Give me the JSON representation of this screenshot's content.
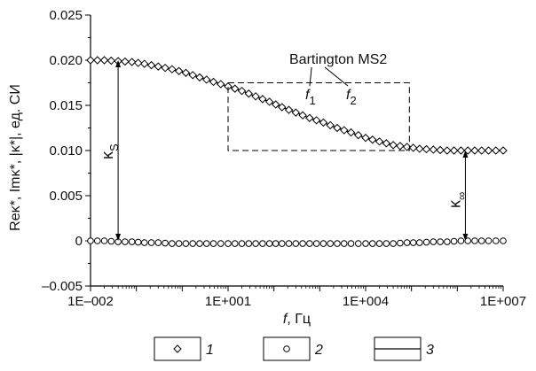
{
  "chart_data": {
    "type": "line",
    "title": "",
    "xlabel": "f, Гц",
    "ylabel": "Reκ*, Imκ*, |κ*|, ед. СИ",
    "x_scale": "log",
    "xlim": [
      0.01,
      10000000
    ],
    "ylim": [
      -0.005,
      0.025
    ],
    "x_ticks": [
      "1E–002",
      "1E+001",
      "1E+004",
      "1E+007"
    ],
    "y_ticks": [
      "0.025",
      "0.020",
      "0.015",
      "0.010",
      "0.005",
      "0",
      "–0.005"
    ],
    "grid": false,
    "x": [
      0.01,
      0.02,
      0.04,
      0.08,
      0.15,
      0.3,
      0.6,
      1.2,
      2.4,
      4.8,
      10,
      20,
      40,
      80,
      150,
      300,
      600,
      1200,
      2400,
      4800,
      10000,
      20000,
      40000,
      80000,
      150000,
      300000,
      600000,
      1200000,
      2400000,
      4800000,
      10000000
    ],
    "series": [
      {
        "name": "1",
        "marker": "diamond",
        "values": [
          0.02,
          0.02,
          0.0199,
          0.0198,
          0.0196,
          0.0193,
          0.019,
          0.0186,
          0.0181,
          0.0176,
          0.0171,
          0.0166,
          0.016,
          0.0154,
          0.0148,
          0.0142,
          0.0136,
          0.0131,
          0.0125,
          0.012,
          0.0114,
          0.011,
          0.0106,
          0.0104,
          0.0102,
          0.0101,
          0.01,
          0.01,
          0.01,
          0.01,
          0.01
        ]
      },
      {
        "name": "2",
        "marker": "circle",
        "values": [
          0.0,
          0.0,
          -0.0001,
          -0.0001,
          -0.0002,
          -0.0002,
          -0.0003,
          -0.0003,
          -0.0003,
          -0.0003,
          -0.0003,
          -0.0003,
          -0.0003,
          -0.0003,
          -0.0003,
          -0.0003,
          -0.0003,
          -0.0003,
          -0.0003,
          -0.0003,
          -0.0003,
          -0.0003,
          -0.0003,
          -0.0002,
          -0.0002,
          -0.0001,
          -0.0001,
          0.0,
          0.0,
          0.0,
          0.0
        ]
      },
      {
        "name": "3",
        "marker": "line",
        "values": [
          0.02,
          0.02,
          0.0199,
          0.0198,
          0.0196,
          0.0193,
          0.019,
          0.0186,
          0.0181,
          0.0176,
          0.0171,
          0.0166,
          0.016,
          0.0154,
          0.0148,
          0.0142,
          0.0136,
          0.0131,
          0.0125,
          0.012,
          0.0114,
          0.011,
          0.0106,
          0.0104,
          0.0102,
          0.0101,
          0.01,
          0.01,
          0.01,
          0.01,
          0.01
        ]
      }
    ],
    "annotations": {
      "instrument": "Bartington MS2",
      "f1_base": "f",
      "f1_sub": "1",
      "f2_base": "f",
      "f2_sub": "2",
      "kappa_s_base": "κ",
      "kappa_s_sub": "S",
      "kappa_inf_base": "κ",
      "kappa_inf_sub": "∞",
      "kappa_s_range": [
        0.0,
        0.02
      ],
      "kappa_s_x": 0.04,
      "kappa_inf_range": [
        0.0,
        0.01
      ],
      "kappa_inf_x": 1500000,
      "dashed_box": {
        "x": [
          10,
          90000
        ],
        "y": [
          0.01,
          0.0175
        ]
      },
      "f1_x": 10,
      "f2_x": 90000
    },
    "legend": {
      "placement": "bottom",
      "entries": [
        {
          "symbol": "◇",
          "label": "1"
        },
        {
          "symbol": "○",
          "label": "2"
        },
        {
          "symbol": "line",
          "label": "3"
        }
      ]
    }
  }
}
